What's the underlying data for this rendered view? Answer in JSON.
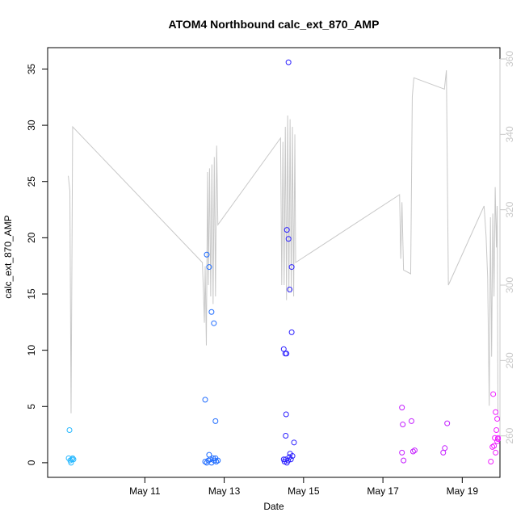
{
  "chart_data": {
    "type": "scatter",
    "title": "ATOM4 Northbound calc_ext_870_AMP",
    "xlabel": "Date",
    "ylabel": "calc_ext_870_AMP",
    "xlim": [
      -1.45,
      9.95
    ],
    "ylim": [
      -1.3,
      36.9
    ],
    "y2lim": [
      249,
      363
    ],
    "x_reference": "May 10",
    "x_ticks": [
      {
        "value": 1,
        "label": "May 11"
      },
      {
        "value": 3,
        "label": "May 13"
      },
      {
        "value": 5,
        "label": "May 15"
      },
      {
        "value": 7,
        "label": "May 17"
      },
      {
        "value": 9,
        "label": "May 19"
      }
    ],
    "y_ticks": [
      0,
      5,
      10,
      15,
      20,
      25,
      30,
      35
    ],
    "y2_ticks": [
      260,
      280,
      300,
      320,
      340,
      360
    ],
    "grid": false,
    "legend": "none",
    "colors": {
      "axis": "#000000",
      "secondary_axis": "#c8c8c8",
      "secondary_line": "#c8c8c8"
    },
    "series": [
      {
        "type": "scatter",
        "points": [
          {
            "x": -0.9,
            "y": 2.9,
            "color": "#26b8ff"
          },
          {
            "x": -0.92,
            "y": 0.4,
            "color": "#26b8ff"
          },
          {
            "x": -0.88,
            "y": 0.2,
            "color": "#26b8ff"
          },
          {
            "x": -0.86,
            "y": 0.0,
            "color": "#26b8ff"
          },
          {
            "x": -0.84,
            "y": 0.3,
            "color": "#26b8ff"
          },
          {
            "x": -0.82,
            "y": 0.4,
            "color": "#26b8ff"
          },
          {
            "x": -0.8,
            "y": 0.3,
            "color": "#26b8ff"
          },
          {
            "x": 2.52,
            "y": 5.6,
            "color": "#1f6cff"
          },
          {
            "x": 2.56,
            "y": 18.5,
            "color": "#1f6cff"
          },
          {
            "x": 2.62,
            "y": 17.4,
            "color": "#1f6cff"
          },
          {
            "x": 2.68,
            "y": 13.4,
            "color": "#1f6cff"
          },
          {
            "x": 2.74,
            "y": 12.4,
            "color": "#1f6cff"
          },
          {
            "x": 2.78,
            "y": 3.7,
            "color": "#1f6cff"
          },
          {
            "x": 2.52,
            "y": 0.1,
            "color": "#1f6cff"
          },
          {
            "x": 2.56,
            "y": 0.0,
            "color": "#1f6cff"
          },
          {
            "x": 2.6,
            "y": 0.2,
            "color": "#1f6cff"
          },
          {
            "x": 2.62,
            "y": 0.7,
            "color": "#1f6cff"
          },
          {
            "x": 2.65,
            "y": 0.3,
            "color": "#1f6cff"
          },
          {
            "x": 2.68,
            "y": 0.0,
            "color": "#1f6cff"
          },
          {
            "x": 2.72,
            "y": 0.4,
            "color": "#1f6cff"
          },
          {
            "x": 2.75,
            "y": 0.2,
            "color": "#1f6cff"
          },
          {
            "x": 2.78,
            "y": 0.4,
            "color": "#1f6cff"
          },
          {
            "x": 2.8,
            "y": 0.1,
            "color": "#1f6cff"
          },
          {
            "x": 2.84,
            "y": 0.2,
            "color": "#1f6cff"
          },
          {
            "x": 4.5,
            "y": 10.1,
            "color": "#2b1fff"
          },
          {
            "x": 4.54,
            "y": 9.7,
            "color": "#2b1fff"
          },
          {
            "x": 4.57,
            "y": 9.7,
            "color": "#2b1fff"
          },
          {
            "x": 4.56,
            "y": 4.3,
            "color": "#2b1fff"
          },
          {
            "x": 4.55,
            "y": 2.4,
            "color": "#2b1fff"
          },
          {
            "x": 4.58,
            "y": 20.7,
            "color": "#2b1fff"
          },
          {
            "x": 4.62,
            "y": 19.9,
            "color": "#2b1fff"
          },
          {
            "x": 4.62,
            "y": 35.6,
            "color": "#2b1fff"
          },
          {
            "x": 4.65,
            "y": 15.4,
            "color": "#2b1fff"
          },
          {
            "x": 4.7,
            "y": 17.4,
            "color": "#2b1fff"
          },
          {
            "x": 4.7,
            "y": 11.6,
            "color": "#2b1fff"
          },
          {
            "x": 4.76,
            "y": 1.8,
            "color": "#2b1fff"
          },
          {
            "x": 4.66,
            "y": 0.8,
            "color": "#2b1fff"
          },
          {
            "x": 4.5,
            "y": 0.3,
            "color": "#2b1fff"
          },
          {
            "x": 4.52,
            "y": 0.1,
            "color": "#2b1fff"
          },
          {
            "x": 4.55,
            "y": 0.3,
            "color": "#2b1fff"
          },
          {
            "x": 4.58,
            "y": 0.0,
            "color": "#2b1fff"
          },
          {
            "x": 4.61,
            "y": 0.2,
            "color": "#2b1fff"
          },
          {
            "x": 4.64,
            "y": 0.5,
            "color": "#2b1fff"
          },
          {
            "x": 4.68,
            "y": 0.3,
            "color": "#2b1fff"
          },
          {
            "x": 4.72,
            "y": 0.6,
            "color": "#2b1fff"
          },
          {
            "x": 7.48,
            "y": 4.9,
            "color": "#c41fff"
          },
          {
            "x": 7.5,
            "y": 3.4,
            "color": "#c41fff"
          },
          {
            "x": 7.48,
            "y": 0.9,
            "color": "#c41fff"
          },
          {
            "x": 7.52,
            "y": 0.2,
            "color": "#c41fff"
          },
          {
            "x": 7.72,
            "y": 3.7,
            "color": "#c41fff"
          },
          {
            "x": 7.76,
            "y": 1.0,
            "color": "#c41fff"
          },
          {
            "x": 7.8,
            "y": 1.1,
            "color": "#c41fff"
          },
          {
            "x": 8.52,
            "y": 0.9,
            "color": "#c41fff"
          },
          {
            "x": 8.56,
            "y": 1.3,
            "color": "#c41fff"
          },
          {
            "x": 8.62,
            "y": 3.5,
            "color": "#c41fff"
          },
          {
            "x": 9.72,
            "y": 0.1,
            "color": "#ef1fff"
          },
          {
            "x": 9.76,
            "y": 1.4,
            "color": "#ef1fff"
          },
          {
            "x": 9.78,
            "y": 6.1,
            "color": "#ef1fff"
          },
          {
            "x": 9.8,
            "y": 1.5,
            "color": "#ef1fff"
          },
          {
            "x": 9.82,
            "y": 2.2,
            "color": "#ef1fff"
          },
          {
            "x": 9.84,
            "y": 4.5,
            "color": "#ef1fff"
          },
          {
            "x": 9.84,
            "y": 0.9,
            "color": "#ef1fff"
          },
          {
            "x": 9.86,
            "y": 2.9,
            "color": "#ef1fff"
          },
          {
            "x": 9.88,
            "y": 3.9,
            "color": "#ef1fff"
          },
          {
            "x": 9.88,
            "y": 1.9,
            "color": "#ef1fff"
          },
          {
            "x": 9.9,
            "y": 2.2,
            "color": "#ef1fff"
          },
          {
            "x": 9.9,
            "y": 2.1,
            "color": "#ef1fff"
          }
        ]
      },
      {
        "type": "line",
        "axis": "right",
        "color": "#c8c8c8",
        "points": [
          [
            -0.93,
            329
          ],
          [
            -0.89,
            325
          ],
          [
            -0.86,
            266
          ],
          [
            -0.82,
            342
          ],
          [
            2.45,
            306
          ],
          [
            2.48,
            297
          ],
          [
            2.5,
            290
          ],
          [
            2.52,
            305
          ],
          [
            2.55,
            284
          ],
          [
            2.58,
            330
          ],
          [
            2.6,
            300
          ],
          [
            2.63,
            331
          ],
          [
            2.66,
            297
          ],
          [
            2.69,
            332
          ],
          [
            2.72,
            295
          ],
          [
            2.75,
            334
          ],
          [
            2.78,
            297
          ],
          [
            2.81,
            337
          ],
          [
            2.84,
            316
          ],
          [
            4.42,
            339
          ],
          [
            4.45,
            300
          ],
          [
            4.48,
            338
          ],
          [
            4.51,
            300
          ],
          [
            4.54,
            342
          ],
          [
            4.57,
            296
          ],
          [
            4.6,
            345
          ],
          [
            4.63,
            298
          ],
          [
            4.66,
            344
          ],
          [
            4.69,
            298
          ],
          [
            4.72,
            342
          ],
          [
            4.75,
            297
          ],
          [
            4.78,
            340
          ],
          [
            4.8,
            306
          ],
          [
            7.42,
            324
          ],
          [
            7.45,
            307
          ],
          [
            7.48,
            322
          ],
          [
            7.52,
            304
          ],
          [
            7.7,
            303
          ],
          [
            7.74,
            350
          ],
          [
            7.78,
            355
          ],
          [
            8.55,
            352
          ],
          [
            8.6,
            357
          ],
          [
            8.65,
            300
          ],
          [
            9.55,
            321
          ],
          [
            9.6,
            313
          ],
          [
            9.64,
            302
          ],
          [
            9.68,
            268
          ],
          [
            9.71,
            318
          ],
          [
            9.74,
            281
          ],
          [
            9.77,
            319
          ],
          [
            9.8,
            297
          ],
          [
            9.83,
            326
          ],
          [
            9.86,
            310
          ],
          [
            9.88,
            321
          ],
          [
            9.9,
            265
          ]
        ]
      }
    ]
  }
}
